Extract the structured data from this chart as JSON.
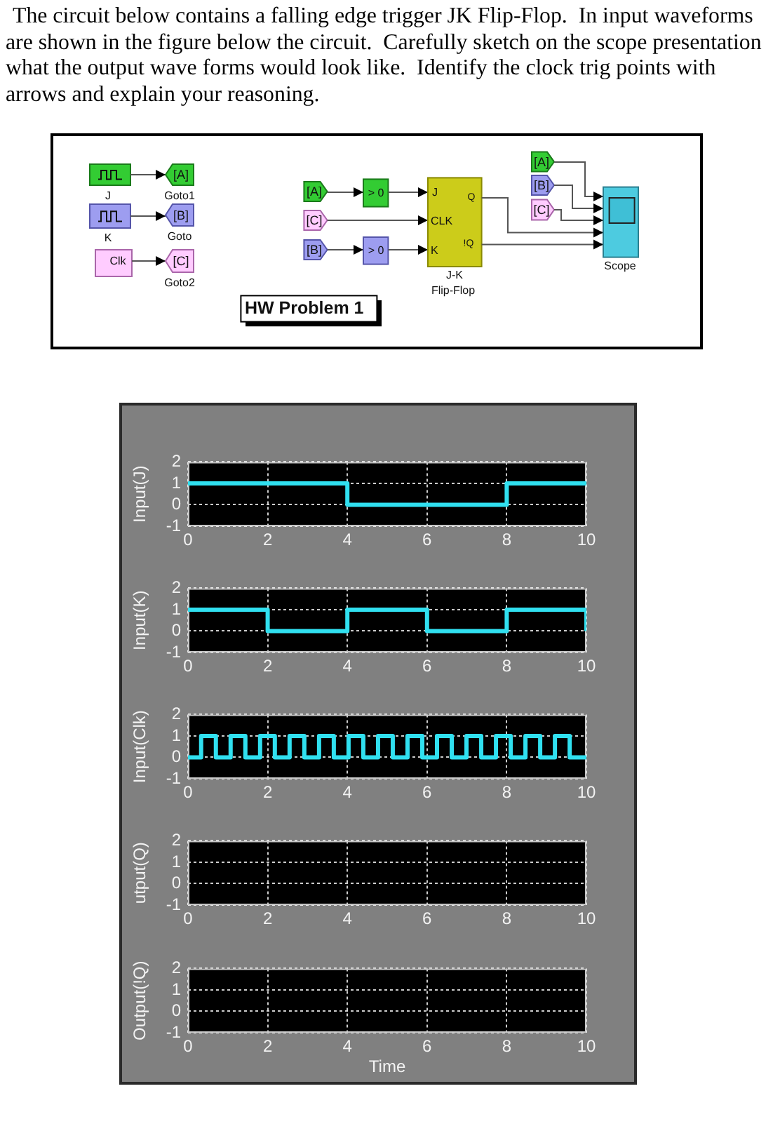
{
  "chart_data": [
    {
      "type": "other",
      "title": "The circuit below contains a falling edge trigger JK Flip-Flop.  In input waveforms are shown in the figure below the circuit.  Carefully sketch on the scope presentation what the output wave forms would look like.  Identify the clock trig points with arrows and explain your reasoning.",
      "annotations": [
        "J",
        "K",
        "Clk",
        "[A]",
        "Goto1",
        "[B]",
        "Goto",
        "[C]",
        "Goto2",
        "[A]",
        "[C]",
        "[B]",
        "> 0",
        "> 0",
        "J",
        "Q",
        "CLK",
        "K",
        "!Q",
        "J-K",
        "Flip-Flop",
        "[A]",
        "[B]",
        "[C]",
        "Scope",
        "HW Problem 1"
      ]
    },
    {
      "type": "step",
      "ylabel": "Input(J)",
      "x": [
        0,
        4,
        8,
        10
      ],
      "values": [
        1,
        0,
        1,
        1
      ],
      "color": "#30e0f0",
      "xlim": [
        0,
        10
      ],
      "xticks": [
        0,
        2,
        4,
        6,
        8,
        10
      ],
      "ylim": [
        -1,
        2
      ],
      "yticks": [
        -1,
        0,
        1,
        2
      ],
      "grid": true
    },
    {
      "type": "step",
      "ylabel": "Input(K)",
      "x": [
        0,
        2,
        4,
        6,
        8,
        10
      ],
      "values": [
        1,
        0,
        1,
        0,
        1,
        0
      ],
      "color": "#30e0f0",
      "xlim": [
        0,
        10
      ],
      "xticks": [
        0,
        2,
        4,
        6,
        8,
        10
      ],
      "ylim": [
        -1,
        2
      ],
      "yticks": [
        -1,
        0,
        1,
        2
      ],
      "grid": true
    },
    {
      "type": "step",
      "ylabel": "Input(Clk)",
      "x": [
        0,
        0.33,
        0.7,
        1.07,
        1.44,
        1.81,
        2.18,
        2.55,
        2.92,
        3.29,
        3.66,
        4.03,
        4.4,
        4.77,
        5.14,
        5.51,
        5.88,
        6.25,
        6.62,
        6.99,
        7.36,
        7.73,
        8.1,
        8.47,
        8.84,
        9.21,
        9.58,
        10
      ],
      "values": [
        0,
        1,
        0,
        1,
        0,
        1,
        0,
        1,
        0,
        1,
        0,
        1,
        0,
        1,
        0,
        1,
        0,
        1,
        0,
        1,
        0,
        1,
        0,
        1,
        0,
        1,
        0,
        0
      ],
      "color": "#30e0f0",
      "xlim": [
        0,
        10
      ],
      "xticks": [
        0,
        2,
        4,
        6,
        8,
        10
      ],
      "ylim": [
        -1,
        2
      ],
      "yticks": [
        -1,
        0,
        1,
        2
      ],
      "grid": true
    },
    {
      "type": "step",
      "ylabel": "utput(Q)",
      "xlim": [
        0,
        10
      ],
      "xticks": [
        0,
        2,
        4,
        6,
        8,
        10
      ],
      "ylim": [
        -1,
        2
      ],
      "yticks": [
        -1,
        0,
        1,
        2
      ],
      "grid": true
    },
    {
      "type": "step",
      "ylabel": "Output(!Q)",
      "xlabel": "Time",
      "xlim": [
        0,
        10
      ],
      "xticks": [
        0,
        2,
        4,
        6,
        8,
        10
      ],
      "ylim": [
        -1,
        2
      ],
      "yticks": [
        -1,
        0,
        1,
        2
      ],
      "grid": true
    }
  ]
}
